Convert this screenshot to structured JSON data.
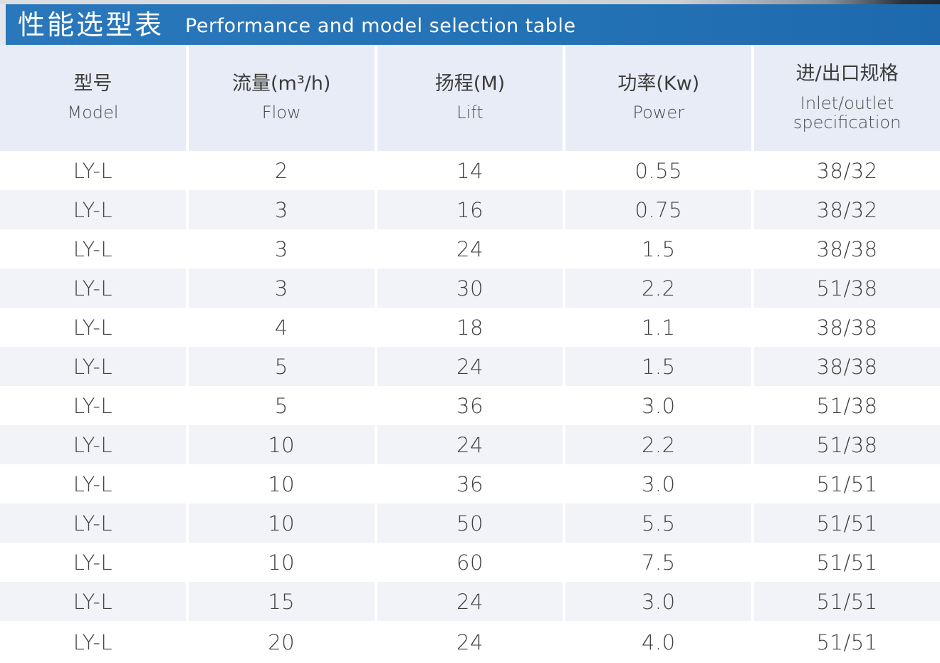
{
  "header": {
    "title_cn": "性能选型表",
    "title_en": "Performance and model selection table"
  },
  "table": {
    "columns": [
      {
        "cn": "型号",
        "en": "Model"
      },
      {
        "cn": "流量(m³/h)",
        "en": "Flow"
      },
      {
        "cn": "扬程(M)",
        "en": "Lift"
      },
      {
        "cn": "功率(Kw)",
        "en": "Power"
      },
      {
        "cn": "进/出口规格",
        "en": "Inlet/outlet",
        "en2": "specification"
      }
    ],
    "rows": [
      [
        "LY-L",
        "2",
        "14",
        "0.55",
        "38/32"
      ],
      [
        "LY-L",
        "3",
        "16",
        "0.75",
        "38/32"
      ],
      [
        "LY-L",
        "3",
        "24",
        "1.5",
        "38/38"
      ],
      [
        "LY-L",
        "3",
        "30",
        "2.2",
        "51/38"
      ],
      [
        "LY-L",
        "4",
        "18",
        "1.1",
        "38/38"
      ],
      [
        "LY-L",
        "5",
        "24",
        "1.5",
        "38/38"
      ],
      [
        "LY-L",
        "5",
        "36",
        "3.0",
        "51/38"
      ],
      [
        "LY-L",
        "10",
        "24",
        "2.2",
        "51/38"
      ],
      [
        "LY-L",
        "10",
        "36",
        "3.0",
        "51/51"
      ],
      [
        "LY-L",
        "10",
        "50",
        "5.5",
        "51/51"
      ],
      [
        "LY-L",
        "10",
        "60",
        "7.5",
        "51/51"
      ],
      [
        "LY-L",
        "15",
        "24",
        "3.0",
        "51/51"
      ],
      [
        "LY-L",
        "20",
        "24",
        "4.0",
        "51/51"
      ]
    ]
  },
  "colors": {
    "accent_blue": "#2472b6",
    "header_row_bg": "#e8ecf6",
    "zebra_row_bg": "#f2f3f8",
    "text_dark": "#404040",
    "title_text": "#ffffff"
  }
}
